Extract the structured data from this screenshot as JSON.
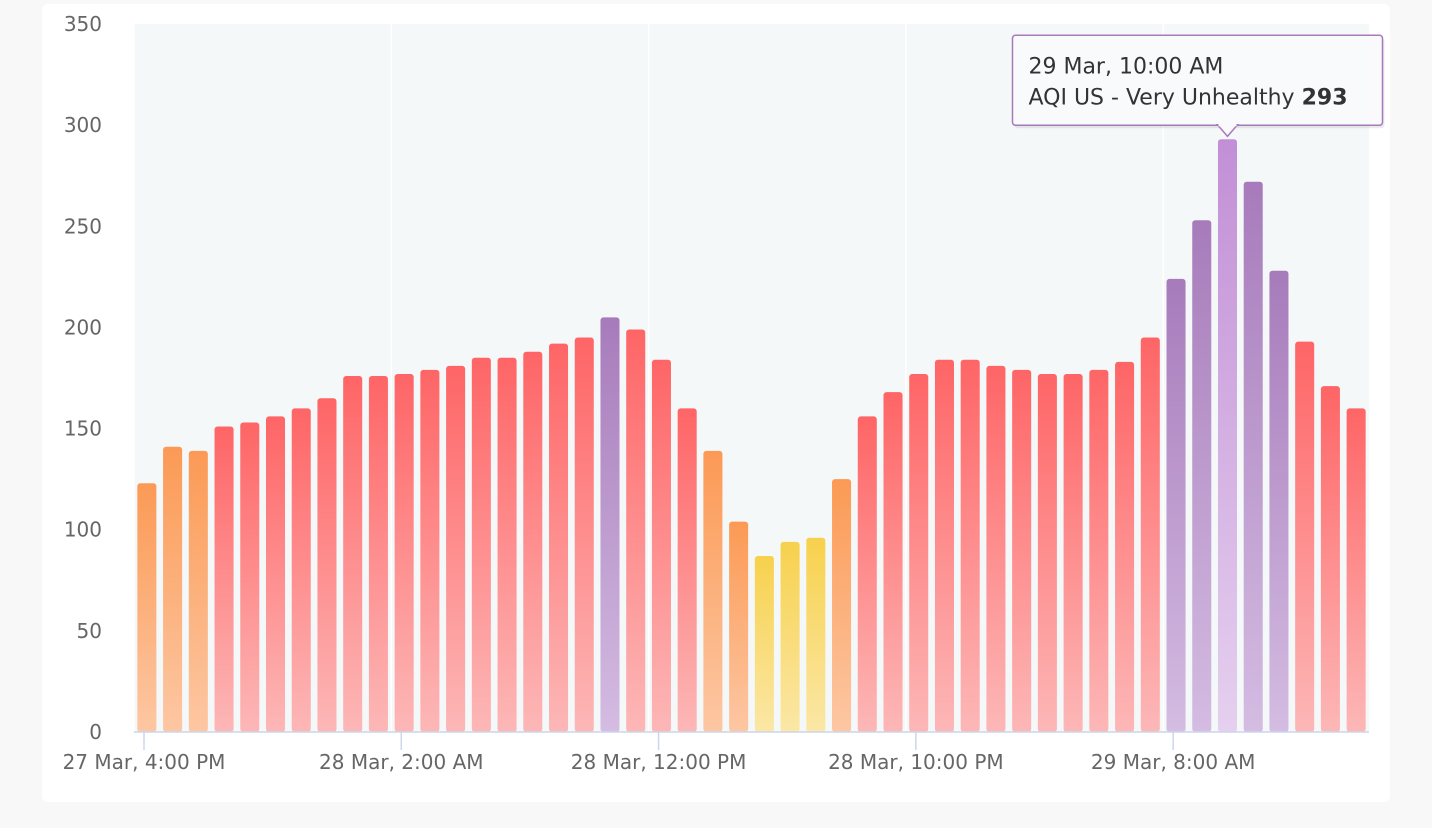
{
  "chart_data": {
    "type": "bar",
    "title": "",
    "xlabel": "",
    "ylabel": "",
    "ylim": [
      0,
      350
    ],
    "yticks": [
      0,
      50,
      100,
      150,
      200,
      250,
      300,
      350
    ],
    "x_tick_labels": [
      {
        "index": 0,
        "label": "27 Mar, 4:00 PM"
      },
      {
        "index": 10,
        "label": "28 Mar, 2:00 AM"
      },
      {
        "index": 20,
        "label": "28 Mar, 12:00 PM"
      },
      {
        "index": 30,
        "label": "28 Mar, 10:00 PM"
      },
      {
        "index": 40,
        "label": "29 Mar, 8:00 AM"
      }
    ],
    "series": [
      {
        "values": [
          123,
          141,
          139,
          151,
          153,
          156,
          160,
          165,
          176,
          176,
          177,
          179,
          181,
          185,
          185,
          188,
          192,
          195,
          205,
          199,
          184,
          160,
          139,
          104,
          87,
          94,
          96,
          125,
          156,
          168,
          177,
          184,
          184,
          181,
          179,
          177,
          177,
          179,
          183,
          195,
          224,
          253,
          293,
          272,
          228,
          193,
          171,
          160
        ],
        "categories": [
          "Unhealthy for Sensitive Groups",
          "Unhealthy for Sensitive Groups",
          "Unhealthy for Sensitive Groups",
          "Unhealthy",
          "Unhealthy",
          "Unhealthy",
          "Unhealthy",
          "Unhealthy",
          "Unhealthy",
          "Unhealthy",
          "Unhealthy",
          "Unhealthy",
          "Unhealthy",
          "Unhealthy",
          "Unhealthy",
          "Unhealthy",
          "Unhealthy",
          "Unhealthy",
          "Very Unhealthy",
          "Unhealthy",
          "Unhealthy",
          "Unhealthy",
          "Unhealthy for Sensitive Groups",
          "Unhealthy for Sensitive Groups",
          "Moderate",
          "Moderate",
          "Moderate",
          "Unhealthy for Sensitive Groups",
          "Unhealthy",
          "Unhealthy",
          "Unhealthy",
          "Unhealthy",
          "Unhealthy",
          "Unhealthy",
          "Unhealthy",
          "Unhealthy",
          "Unhealthy",
          "Unhealthy",
          "Unhealthy",
          "Unhealthy",
          "Very Unhealthy",
          "Very Unhealthy",
          "Very Unhealthy",
          "Very Unhealthy",
          "Very Unhealthy",
          "Unhealthy",
          "Unhealthy",
          "Unhealthy"
        ]
      }
    ],
    "highlight_index": 42,
    "colors": {
      "Moderate": {
        "top": "#f7d14d",
        "bottom": "#fbe7a6"
      },
      "Unhealthy for Sensitive Groups": {
        "top": "#fb9a55",
        "bottom": "#fdc7a3"
      },
      "Unhealthy": {
        "top": "#fe6566",
        "bottom": "#fdb7b7"
      },
      "Very Unhealthy": {
        "top": "#a77bbb",
        "bottom": "#d4bce2"
      },
      "highlight": {
        "top": "#c28fd6",
        "bottom": "#e5d0ef"
      }
    },
    "plot_background": "#f5f8f9",
    "grid": true
  },
  "tooltip": {
    "date": "29 Mar, 10:00 AM",
    "series_label": "AQI US - Very Unhealthy",
    "value": "293",
    "border_color": "#a77bbb"
  }
}
